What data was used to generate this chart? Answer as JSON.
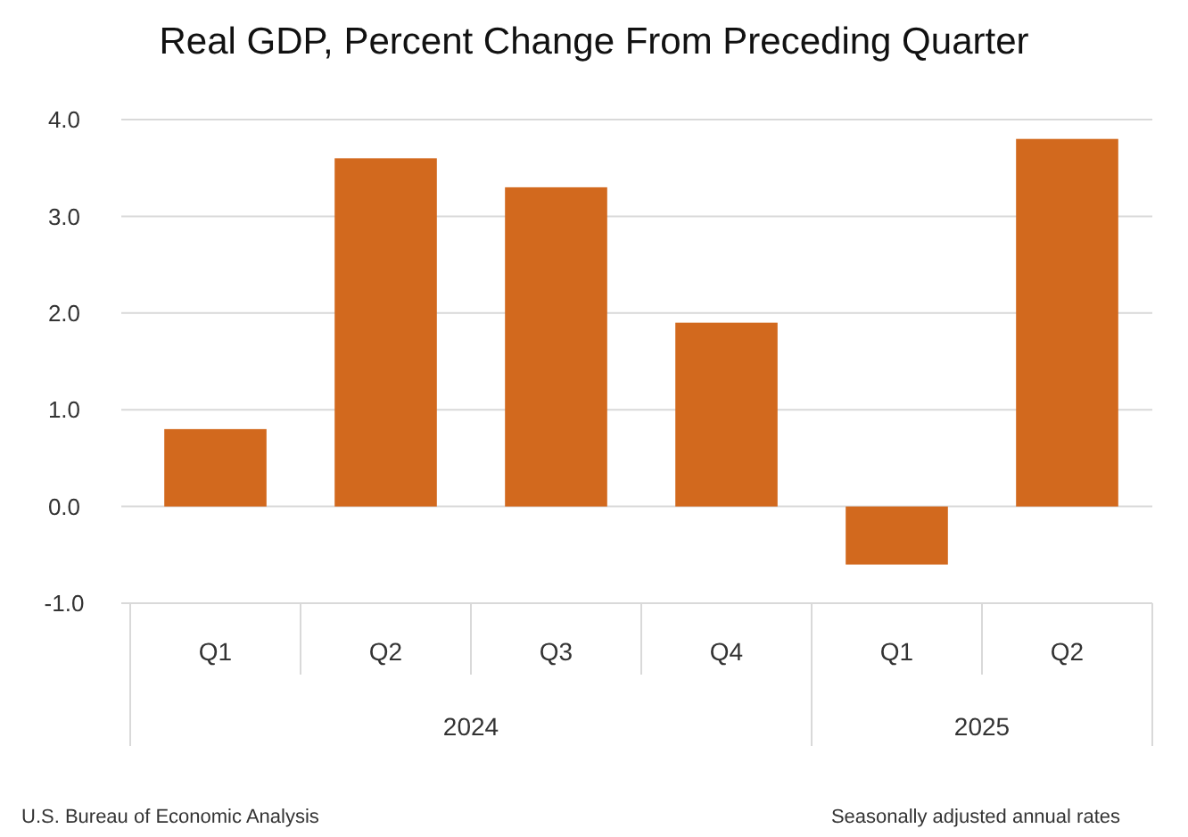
{
  "chart_data": {
    "type": "bar",
    "title": "Real GDP, Percent Change From Preceding Quarter",
    "categories": [
      "Q1",
      "Q2",
      "Q3",
      "Q4",
      "Q1",
      "Q2"
    ],
    "values": [
      0.8,
      3.6,
      3.3,
      1.9,
      -0.6,
      3.8
    ],
    "color": "#d2691e",
    "ylim": [
      -1,
      4
    ],
    "yticks": [
      {
        "value": -1,
        "label": "-1.0"
      },
      {
        "value": 0,
        "label": "0.0"
      },
      {
        "value": 1,
        "label": "1.0"
      },
      {
        "value": 2,
        "label": "2.0"
      },
      {
        "value": 3,
        "label": "3.0"
      },
      {
        "value": 4,
        "label": "4.0"
      }
    ],
    "grid": "y",
    "annotations": [
      "2024",
      "2025",
      "U.S. Bureau of Economic Analysis",
      "Seasonally adjusted annual rates"
    ]
  }
}
